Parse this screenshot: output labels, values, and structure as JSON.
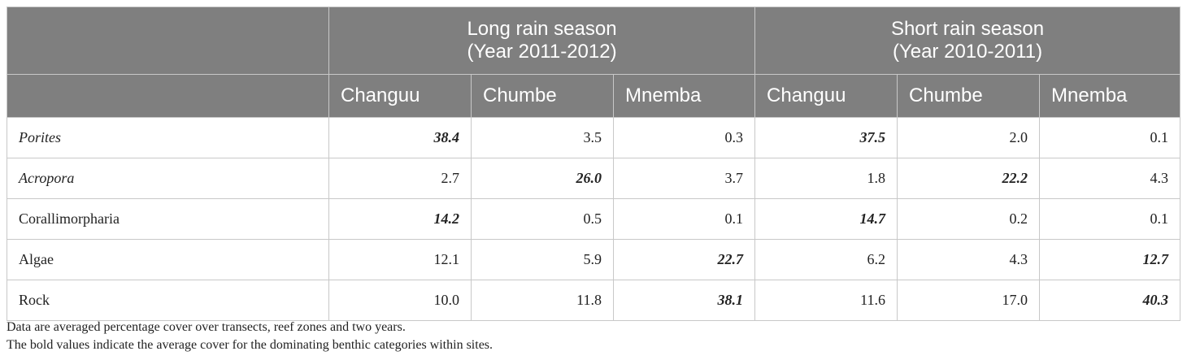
{
  "table": {
    "groups": [
      {
        "title": "Long rain season",
        "subtitle": "(Year 2011-2012)"
      },
      {
        "title": "Short rain season",
        "subtitle": "(Year 2010-2011)"
      }
    ],
    "columns": [
      "Changuu",
      "Chumbe",
      "Mnemba",
      "Changuu",
      "Chumbe",
      "Mnemba"
    ],
    "rows": [
      {
        "label": "Porites",
        "italic": true,
        "values": [
          "38.4",
          "3.5",
          "0.3",
          "37.5",
          "2.0",
          "0.1"
        ],
        "bold": [
          0,
          3
        ]
      },
      {
        "label": "Acropora",
        "italic": true,
        "values": [
          "2.7",
          "26.0",
          "3.7",
          "1.8",
          "22.2",
          "4.3"
        ],
        "bold": [
          1,
          4
        ]
      },
      {
        "label": "Corallimorpharia",
        "italic": false,
        "values": [
          "14.2",
          "0.5",
          "0.1",
          "14.7",
          "0.2",
          "0.1"
        ],
        "bold": [
          0,
          3
        ]
      },
      {
        "label": "Algae",
        "italic": false,
        "values": [
          "12.1",
          "5.9",
          "22.7",
          "6.2",
          "4.3",
          "12.7"
        ],
        "bold": [
          2,
          5
        ]
      },
      {
        "label": "Rock",
        "italic": false,
        "values": [
          "10.0",
          "11.8",
          "38.1",
          "11.6",
          "17.0",
          "40.3"
        ],
        "bold": [
          2,
          5
        ]
      }
    ]
  },
  "notes": [
    "Data are averaged percentage cover over transects, reef zones and two years.",
    "The bold values indicate the average cover for the dominating benthic categories  within sites."
  ]
}
